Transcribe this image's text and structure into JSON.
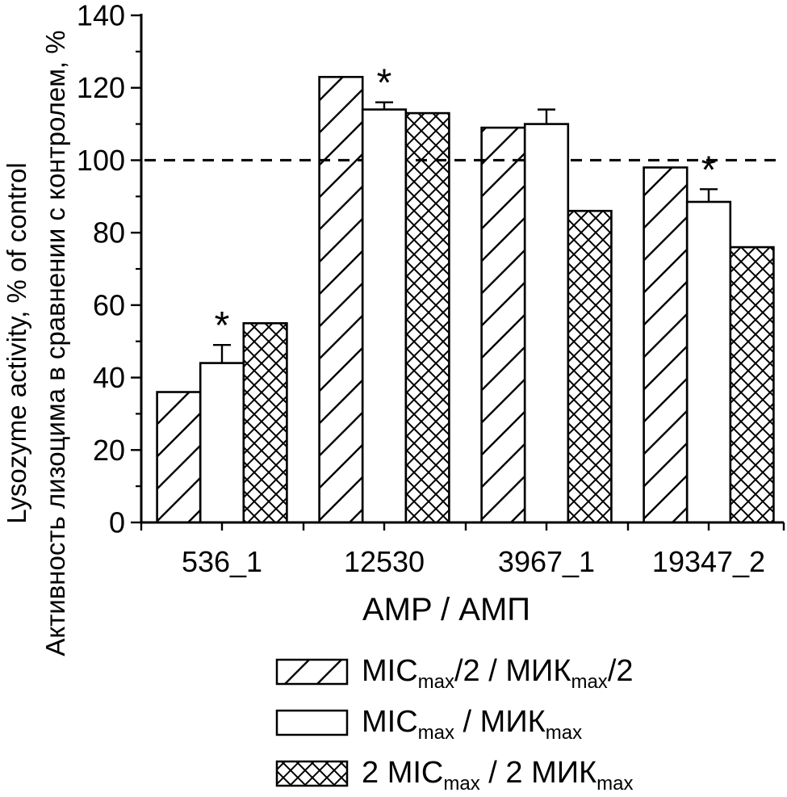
{
  "figure": {
    "background": "#ffffff",
    "ink_color": "#000000"
  },
  "chart_data": {
    "type": "bar",
    "title": "",
    "xlabel": "AMP / АМП",
    "ylabel_line1": "Lysozyme activity, % of control",
    "ylabel_line2": "Активность лизоцима в сравнении с контролем, %",
    "ylim": [
      0,
      140
    ],
    "yticks": [
      0,
      20,
      40,
      60,
      80,
      100,
      120,
      140
    ],
    "ytick_labels": [
      "0",
      "20",
      "40",
      "60",
      "80",
      "100",
      "120",
      "140"
    ],
    "ytick_minor_step": 10,
    "grid": false,
    "reference_line_y": 100,
    "reference_line_style": "dashed",
    "legend_position": "bottom-center",
    "significance_symbol": "*",
    "categories": [
      "536_1",
      "12530",
      "3967_1",
      "19347_2"
    ],
    "series": [
      {
        "name": "MICmax/2 / МИКmax/2",
        "pattern": "diagonal-hatch",
        "values": [
          36,
          123,
          109,
          98
        ],
        "errors": [
          null,
          null,
          null,
          null
        ]
      },
      {
        "name": "MICmax / МИКmax",
        "pattern": "solid-white",
        "values": [
          44,
          114,
          110,
          88.5
        ],
        "errors": [
          5,
          2,
          4,
          3.5
        ]
      },
      {
        "name": "2 MICmax / 2 МИКmax",
        "pattern": "crosshatch",
        "values": [
          55,
          113,
          86,
          76
        ],
        "errors": [
          null,
          null,
          null,
          null
        ]
      }
    ],
    "asterisks": [
      {
        "series": 1,
        "category": 0
      },
      {
        "series": 1,
        "category": 1
      },
      {
        "series": 1,
        "category": 3
      }
    ],
    "legend": [
      {
        "pattern": "diagonal-hatch",
        "parts": [
          {
            "t": "MIC",
            "sub": false
          },
          {
            "t": "max",
            "sub": true
          },
          {
            "t": "/2 / МИК",
            "sub": false
          },
          {
            "t": "max",
            "sub": true
          },
          {
            "t": "/2",
            "sub": false
          }
        ]
      },
      {
        "pattern": "solid-white",
        "parts": [
          {
            "t": "MIC",
            "sub": false
          },
          {
            "t": "max",
            "sub": true
          },
          {
            "t": " / МИК",
            "sub": false
          },
          {
            "t": "max",
            "sub": true
          }
        ]
      },
      {
        "pattern": "crosshatch",
        "parts": [
          {
            "t": "2 MIC",
            "sub": false
          },
          {
            "t": "max",
            "sub": true
          },
          {
            "t": " / 2 МИК",
            "sub": false
          },
          {
            "t": "max",
            "sub": true
          }
        ]
      }
    ]
  }
}
